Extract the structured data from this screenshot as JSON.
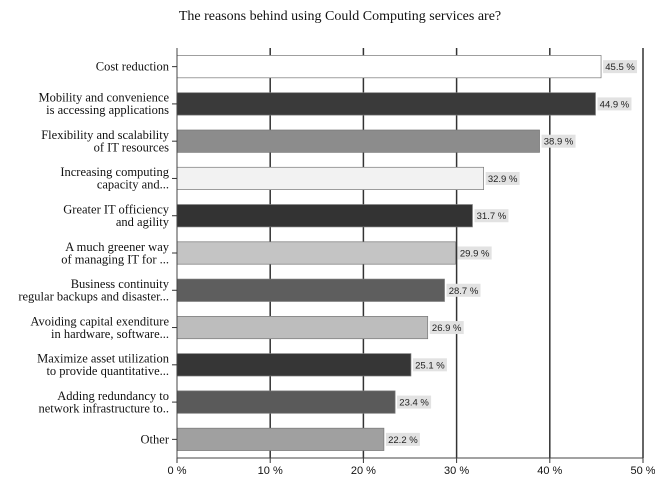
{
  "chart_data": {
    "type": "bar",
    "orientation": "horizontal",
    "title": "The reasons behind using Could Computing services are?",
    "categories": [
      [
        "Cost reduction"
      ],
      [
        "Mobility and convenience",
        "is accessing applications"
      ],
      [
        "Flexibility and scalability",
        "of IT resources"
      ],
      [
        "Increasing computing",
        "capacity and..."
      ],
      [
        "Greater IT officiency",
        "and agility"
      ],
      [
        "A much greener way",
        "of managing IT for ..."
      ],
      [
        "Business continuity",
        "regular backups and disaster..."
      ],
      [
        "Avoiding capital exenditure",
        "in hardware, software..."
      ],
      [
        "Maximize asset utilization",
        "to provide quantitative..."
      ],
      [
        "Adding redundancy to",
        "network infrastructure to.."
      ],
      [
        "Other"
      ]
    ],
    "values": [
      45.5,
      44.9,
      38.9,
      32.9,
      31.7,
      29.9,
      28.7,
      26.9,
      25.1,
      23.4,
      22.2
    ],
    "value_labels": [
      "45.5 %",
      "44.9 %",
      "38.9 %",
      "32.9 %",
      "31.7 %",
      "29.9 %",
      "28.7 %",
      "26.9 %",
      "25.1 %",
      "23.4 %",
      "22.2 %"
    ],
    "bar_colors": [
      "#ffffff",
      "#3a3a3a",
      "#8c8c8c",
      "#f2f2f2",
      "#333333",
      "#c4c4c4",
      "#5e5e5e",
      "#bdbdbd",
      "#363636",
      "#5a5a5a",
      "#a0a0a0"
    ],
    "xlim": [
      0,
      50
    ],
    "x_ticks": [
      0,
      10,
      20,
      30,
      40,
      50
    ],
    "x_tick_labels": [
      "0 %",
      "10 %",
      "20 %",
      "30 %",
      "40 %",
      "50 %"
    ],
    "grid": true,
    "xlabel": "",
    "ylabel": ""
  }
}
